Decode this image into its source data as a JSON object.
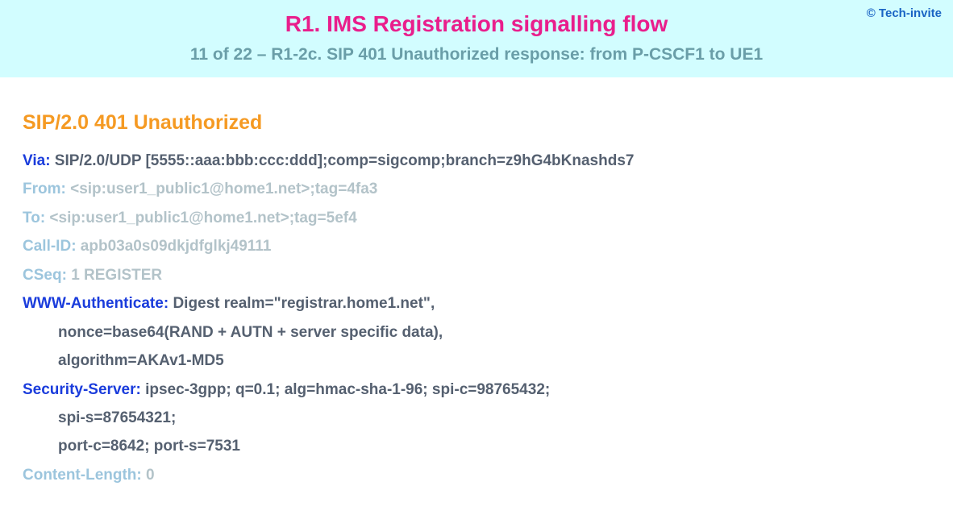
{
  "header": {
    "copyright": "© Tech-invite",
    "title": "R1. IMS Registration signalling flow",
    "subtitle": "11 of 22 – R1-2c. SIP 401 Unauthorized response: from P-CSCF1 to UE1"
  },
  "sip": {
    "status_line": "SIP/2.0 401 Unauthorized",
    "fields": [
      {
        "key": "Via",
        "value": "SIP/2.0/UDP [5555::aaa:bbb:ccc:ddd];comp=sigcomp;branch=z9hG4bKnashds7",
        "style": "strong",
        "continuation": []
      },
      {
        "key": "From",
        "value": "<sip:user1_public1@home1.net>;tag=4fa3",
        "style": "grey",
        "continuation": []
      },
      {
        "key": "To",
        "value": "<sip:user1_public1@home1.net>;tag=5ef4",
        "style": "grey",
        "continuation": []
      },
      {
        "key": "Call-ID",
        "value": "apb03a0s09dkjdfglkj49111",
        "style": "grey",
        "continuation": []
      },
      {
        "key": "CSeq",
        "value": "1 REGISTER",
        "style": "grey",
        "continuation": []
      },
      {
        "key": "WWW-Authenticate",
        "value": "Digest realm=\"registrar.home1.net\",",
        "style": "strong",
        "continuation": [
          "nonce=base64(RAND + AUTN + server specific data),",
          "algorithm=AKAv1-MD5"
        ]
      },
      {
        "key": "Security-Server",
        "value": "ipsec-3gpp; q=0.1; alg=hmac-sha-1-96; spi-c=98765432;",
        "style": "strong",
        "continuation": [
          "spi-s=87654321;",
          "port-c=8642; port-s=7531"
        ]
      },
      {
        "key": "Content-Length",
        "value": "0",
        "style": "grey",
        "continuation": []
      }
    ]
  },
  "colors": {
    "header_bg": "#d2fdff",
    "title_color": "#e91e8c",
    "subtitle_color": "#6a9ea8",
    "copyright_color": "#1a64c4",
    "status_color": "#f59a23",
    "key_strong": "#1a3cdc",
    "val_strong": "#556070",
    "key_grey": "#9cc5dd",
    "val_grey": "#b3c3c9"
  }
}
